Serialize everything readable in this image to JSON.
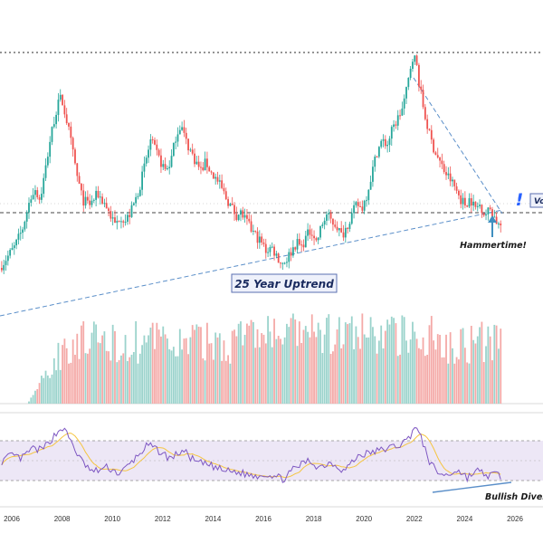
{
  "chart_data": {
    "type": "candlestick",
    "x_axis": {
      "ticks": [
        "2006",
        "2008",
        "2010",
        "2012",
        "2014",
        "2016",
        "2018",
        "2020",
        "2022",
        "2024",
        "2026"
      ],
      "range": [
        2005.5,
        2026.5
      ]
    },
    "colors": {
      "up": "#26a69a",
      "down": "#ef5350",
      "vol_up": "#9bd3cc",
      "vol_down": "#f4a9a7",
      "rsi": "#7e57c2",
      "rsi_ma": "#f5c542",
      "rsi_band": "#ede7f6",
      "trend": "#5b8fc9",
      "alert": "#2962ff"
    },
    "price_path": [
      [
        2005.6,
        0.0
      ],
      [
        2005.9,
        0.05
      ],
      [
        2006.2,
        0.1
      ],
      [
        2006.5,
        0.18
      ],
      [
        2006.8,
        0.32
      ],
      [
        2007.0,
        0.38
      ],
      [
        2007.2,
        0.32
      ],
      [
        2007.4,
        0.45
      ],
      [
        2007.6,
        0.6
      ],
      [
        2007.8,
        0.72
      ],
      [
        2008.0,
        0.8
      ],
      [
        2008.1,
        0.78
      ],
      [
        2008.3,
        0.68
      ],
      [
        2008.5,
        0.55
      ],
      [
        2008.7,
        0.42
      ],
      [
        2008.9,
        0.32
      ],
      [
        2009.2,
        0.3
      ],
      [
        2009.5,
        0.35
      ],
      [
        2009.8,
        0.3
      ],
      [
        2010.0,
        0.25
      ],
      [
        2010.2,
        0.2
      ],
      [
        2010.4,
        0.25
      ],
      [
        2010.6,
        0.22
      ],
      [
        2010.8,
        0.26
      ],
      [
        2011.0,
        0.32
      ],
      [
        2011.2,
        0.4
      ],
      [
        2011.4,
        0.5
      ],
      [
        2011.6,
        0.6
      ],
      [
        2011.8,
        0.55
      ],
      [
        2012.0,
        0.5
      ],
      [
        2012.2,
        0.46
      ],
      [
        2012.4,
        0.5
      ],
      [
        2012.6,
        0.62
      ],
      [
        2012.8,
        0.68
      ],
      [
        2013.0,
        0.6
      ],
      [
        2013.2,
        0.55
      ],
      [
        2013.4,
        0.5
      ],
      [
        2013.6,
        0.46
      ],
      [
        2013.8,
        0.5
      ],
      [
        2014.0,
        0.45
      ],
      [
        2014.2,
        0.42
      ],
      [
        2014.4,
        0.38
      ],
      [
        2014.6,
        0.33
      ],
      [
        2014.8,
        0.29
      ],
      [
        2015.0,
        0.25
      ],
      [
        2015.2,
        0.26
      ],
      [
        2015.4,
        0.22
      ],
      [
        2015.6,
        0.18
      ],
      [
        2015.8,
        0.15
      ],
      [
        2016.0,
        0.12
      ],
      [
        2016.2,
        0.08
      ],
      [
        2016.4,
        0.1
      ],
      [
        2016.6,
        0.06
      ],
      [
        2016.8,
        0.02
      ],
      [
        2017.0,
        0.04
      ],
      [
        2017.2,
        0.08
      ],
      [
        2017.4,
        0.12
      ],
      [
        2017.6,
        0.1
      ],
      [
        2017.8,
        0.15
      ],
      [
        2018.0,
        0.18
      ],
      [
        2018.2,
        0.12
      ],
      [
        2018.4,
        0.2
      ],
      [
        2018.6,
        0.25
      ],
      [
        2018.8,
        0.22
      ],
      [
        2019.0,
        0.2
      ],
      [
        2019.2,
        0.15
      ],
      [
        2019.4,
        0.2
      ],
      [
        2019.6,
        0.25
      ],
      [
        2019.8,
        0.3
      ],
      [
        2020.0,
        0.28
      ],
      [
        2020.2,
        0.35
      ],
      [
        2020.4,
        0.45
      ],
      [
        2020.6,
        0.55
      ],
      [
        2020.8,
        0.6
      ],
      [
        2021.0,
        0.58
      ],
      [
        2021.2,
        0.65
      ],
      [
        2021.4,
        0.7
      ],
      [
        2021.6,
        0.75
      ],
      [
        2021.8,
        0.85
      ],
      [
        2022.0,
        1.0
      ],
      [
        2022.15,
        0.98
      ],
      [
        2022.3,
        0.85
      ],
      [
        2022.5,
        0.72
      ],
      [
        2022.7,
        0.62
      ],
      [
        2022.9,
        0.55
      ],
      [
        2023.1,
        0.5
      ],
      [
        2023.3,
        0.45
      ],
      [
        2023.5,
        0.42
      ],
      [
        2023.7,
        0.38
      ],
      [
        2023.9,
        0.33
      ],
      [
        2024.1,
        0.3
      ],
      [
        2024.3,
        0.33
      ],
      [
        2024.5,
        0.28
      ],
      [
        2024.7,
        0.3
      ],
      [
        2024.9,
        0.25
      ],
      [
        2025.1,
        0.28
      ],
      [
        2025.3,
        0.23
      ],
      [
        2025.45,
        0.2
      ]
    ],
    "rsi_path": [
      [
        2005.6,
        45
      ],
      [
        2006.0,
        52
      ],
      [
        2006.4,
        48
      ],
      [
        2006.8,
        60
      ],
      [
        2007.2,
        58
      ],
      [
        2007.6,
        72
      ],
      [
        2008.0,
        85
      ],
      [
        2008.3,
        72
      ],
      [
        2008.7,
        48
      ],
      [
        2009.2,
        32
      ],
      [
        2009.8,
        38
      ],
      [
        2010.3,
        30
      ],
      [
        2010.8,
        45
      ],
      [
        2011.4,
        64
      ],
      [
        2011.8,
        58
      ],
      [
        2012.3,
        48
      ],
      [
        2012.8,
        58
      ],
      [
        2013.3,
        44
      ],
      [
        2013.9,
        40
      ],
      [
        2014.4,
        34
      ],
      [
        2015.0,
        32
      ],
      [
        2015.6,
        28
      ],
      [
        2016.2,
        30
      ],
      [
        2016.8,
        24
      ],
      [
        2017.3,
        38
      ],
      [
        2017.8,
        46
      ],
      [
        2018.2,
        38
      ],
      [
        2018.7,
        44
      ],
      [
        2019.2,
        34
      ],
      [
        2019.8,
        52
      ],
      [
        2020.4,
        56
      ],
      [
        2020.9,
        60
      ],
      [
        2021.4,
        64
      ],
      [
        2021.8,
        72
      ],
      [
        2022.0,
        88
      ],
      [
        2022.3,
        70
      ],
      [
        2022.6,
        45
      ],
      [
        2022.9,
        32
      ],
      [
        2023.3,
        28
      ],
      [
        2023.7,
        35
      ],
      [
        2024.1,
        26
      ],
      [
        2024.5,
        34
      ],
      [
        2024.9,
        28
      ],
      [
        2025.3,
        30
      ],
      [
        2025.45,
        27
      ]
    ]
  },
  "annotations": {
    "uptrend_label": "25 Year Uptrend",
    "hammer_label": "Hammertime!",
    "divergence_label": "Bullish Diverg",
    "alert_symbol": "!",
    "right_edge_label": "Vo"
  }
}
